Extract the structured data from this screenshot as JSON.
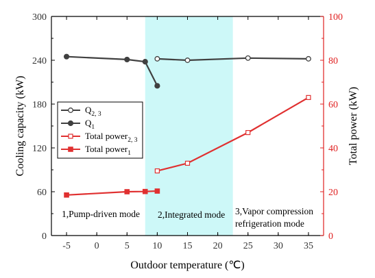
{
  "chart_data": {
    "type": "line",
    "x_axis": {
      "label": "Outdoor temperature (℃)",
      "min": -7.5,
      "max": 37.5,
      "ticks": [
        -5,
        0,
        5,
        10,
        15,
        20,
        25,
        30,
        35
      ]
    },
    "y_left": {
      "label": "Cooling capacity (kW)",
      "min": 0,
      "max": 300,
      "ticks": [
        0,
        60,
        120,
        180,
        240,
        300
      ]
    },
    "y_right": {
      "label": "Total power (kW)",
      "min": 0,
      "max": 100,
      "ticks": [
        0,
        20,
        40,
        60,
        80,
        100
      ],
      "color": "#e02020"
    },
    "shaded_region": {
      "x_start": 8,
      "x_end": 22.5,
      "color": "#cdf8f8"
    },
    "mode_labels": [
      {
        "id": "mode-1",
        "lines": [
          "1,Pump-driven mode"
        ]
      },
      {
        "id": "mode-2",
        "lines": [
          "2,Integrated mode"
        ]
      },
      {
        "id": "mode-3",
        "lines": [
          "3,Vapor compression",
          "refrigeration mode"
        ]
      }
    ],
    "series": [
      {
        "name": "Q",
        "sub": "2, 3",
        "axis": "left",
        "color": "#404040",
        "marker": "circle-open",
        "x": [
          10,
          15,
          25,
          35
        ],
        "y": [
          242,
          240,
          243,
          242
        ]
      },
      {
        "name": "Q",
        "sub": "1",
        "axis": "left",
        "color": "#404040",
        "marker": "circle-filled",
        "x": [
          -5,
          5,
          8,
          10
        ],
        "y": [
          245,
          241,
          238,
          205
        ]
      },
      {
        "name": "Total power",
        "sub": "2, 3",
        "axis": "right",
        "color": "#e03030",
        "marker": "square-open",
        "x": [
          10,
          15,
          25,
          35
        ],
        "y": [
          29.5,
          33,
          47,
          63
        ]
      },
      {
        "name": "Total power",
        "sub": "1",
        "axis": "right",
        "color": "#e03030",
        "marker": "square-filled",
        "x": [
          -5,
          5,
          8,
          10
        ],
        "y": [
          18.5,
          20,
          20.1,
          20.3
        ]
      }
    ]
  }
}
